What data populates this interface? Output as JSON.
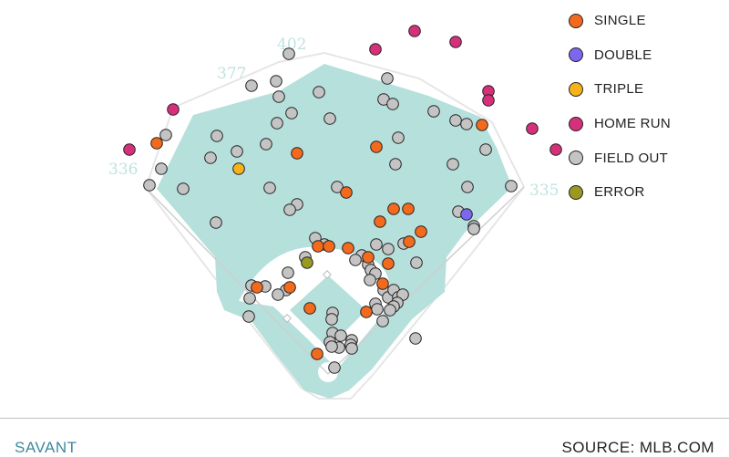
{
  "chart_data": {
    "type": "scatter",
    "title": "",
    "distances": {
      "left_field": "336",
      "left_center": "377",
      "center_field": "402",
      "right_field": "335"
    },
    "legend": [
      {
        "key": "single",
        "label": "SINGLE",
        "color": "#f46a1d"
      },
      {
        "key": "double",
        "label": "DOUBLE",
        "color": "#7b68ee"
      },
      {
        "key": "triple",
        "label": "TRIPLE",
        "color": "#f5b21b"
      },
      {
        "key": "home_run",
        "label": "HOME RUN",
        "color": "#d6307a"
      },
      {
        "key": "field_out",
        "label": "FIELD OUT",
        "color": "#c4c4c4"
      },
      {
        "key": "error",
        "label": "ERROR",
        "color": "#9a9a20"
      }
    ],
    "series": [
      {
        "name": "HOME RUN",
        "key": "home_run",
        "points": [
          [
            142,
            164
          ],
          [
            190,
            120
          ],
          [
            412,
            54
          ],
          [
            455,
            34
          ],
          [
            500,
            46
          ],
          [
            536,
            100
          ],
          [
            536,
            110
          ],
          [
            584,
            141
          ],
          [
            610,
            164
          ]
        ]
      },
      {
        "name": "TRIPLE",
        "key": "triple",
        "points": [
          [
            262,
            185
          ]
        ]
      },
      {
        "name": "DOUBLE",
        "key": "double",
        "points": [
          [
            512,
            235
          ]
        ]
      },
      {
        "name": "ERROR",
        "key": "error",
        "points": [
          [
            337,
            288
          ]
        ]
      },
      {
        "name": "SINGLE",
        "key": "single",
        "points": [
          [
            172,
            157
          ],
          [
            326,
            168
          ],
          [
            413,
            161
          ],
          [
            529,
            137
          ],
          [
            380,
            211
          ],
          [
            448,
            229
          ],
          [
            432,
            229
          ],
          [
            417,
            243
          ],
          [
            462,
            254
          ],
          [
            449,
            265
          ],
          [
            349,
            270
          ],
          [
            361,
            270
          ],
          [
            382,
            272
          ],
          [
            404,
            282
          ],
          [
            426,
            289
          ],
          [
            318,
            315
          ],
          [
            282,
            315
          ],
          [
            340,
            338
          ],
          [
            420,
            311
          ],
          [
            402,
            342
          ],
          [
            348,
            388
          ]
        ]
      },
      {
        "name": "FIELD OUT",
        "key": "field_out",
        "points": [
          [
            317,
            59
          ],
          [
            276,
            94
          ],
          [
            303,
            89
          ],
          [
            425,
            86
          ],
          [
            350,
            101
          ],
          [
            306,
            106
          ],
          [
            421,
            109
          ],
          [
            431,
            114
          ],
          [
            476,
            122
          ],
          [
            304,
            135
          ],
          [
            320,
            124
          ],
          [
            362,
            130
          ],
          [
            500,
            132
          ],
          [
            512,
            136
          ],
          [
            182,
            148
          ],
          [
            238,
            149
          ],
          [
            260,
            166
          ],
          [
            292,
            158
          ],
          [
            437,
            151
          ],
          [
            231,
            173
          ],
          [
            177,
            185
          ],
          [
            434,
            180
          ],
          [
            497,
            180
          ],
          [
            533,
            164
          ],
          [
            164,
            203
          ],
          [
            201,
            207
          ],
          [
            296,
            206
          ],
          [
            370,
            205
          ],
          [
            326,
            224
          ],
          [
            318,
            230
          ],
          [
            513,
            205
          ],
          [
            503,
            232
          ],
          [
            561,
            204
          ],
          [
            237,
            244
          ],
          [
            520,
            248
          ],
          [
            520,
            251
          ],
          [
            413,
            268
          ],
          [
            426,
            273
          ],
          [
            443,
            267
          ],
          [
            346,
            261
          ],
          [
            356,
            268
          ],
          [
            335,
            282
          ],
          [
            397,
            280
          ],
          [
            390,
            285
          ],
          [
            404,
            290
          ],
          [
            407,
            296
          ],
          [
            412,
            300
          ],
          [
            316,
            299
          ],
          [
            457,
            288
          ],
          [
            276,
            313
          ],
          [
            291,
            314
          ],
          [
            314,
            318
          ],
          [
            305,
            323
          ],
          [
            274,
            327
          ],
          [
            406,
            307
          ],
          [
            421,
            318
          ],
          [
            426,
            326
          ],
          [
            432,
            318
          ],
          [
            437,
            326
          ],
          [
            442,
            323
          ],
          [
            412,
            333
          ],
          [
            436,
            332
          ],
          [
            414,
            339
          ],
          [
            432,
            336
          ],
          [
            428,
            340
          ],
          [
            420,
            352
          ],
          [
            273,
            347
          ],
          [
            365,
            343
          ],
          [
            364,
            350
          ],
          [
            365,
            365
          ],
          [
            374,
            368
          ],
          [
            362,
            375
          ],
          [
            386,
            373
          ],
          [
            372,
            381
          ],
          [
            385,
            378
          ],
          [
            386,
            382
          ],
          [
            364,
            380
          ],
          [
            456,
            371
          ],
          [
            367,
            403
          ]
        ]
      }
    ]
  },
  "footer": {
    "brand": "SAVANT",
    "source": "SOURCE: MLB.COM"
  }
}
